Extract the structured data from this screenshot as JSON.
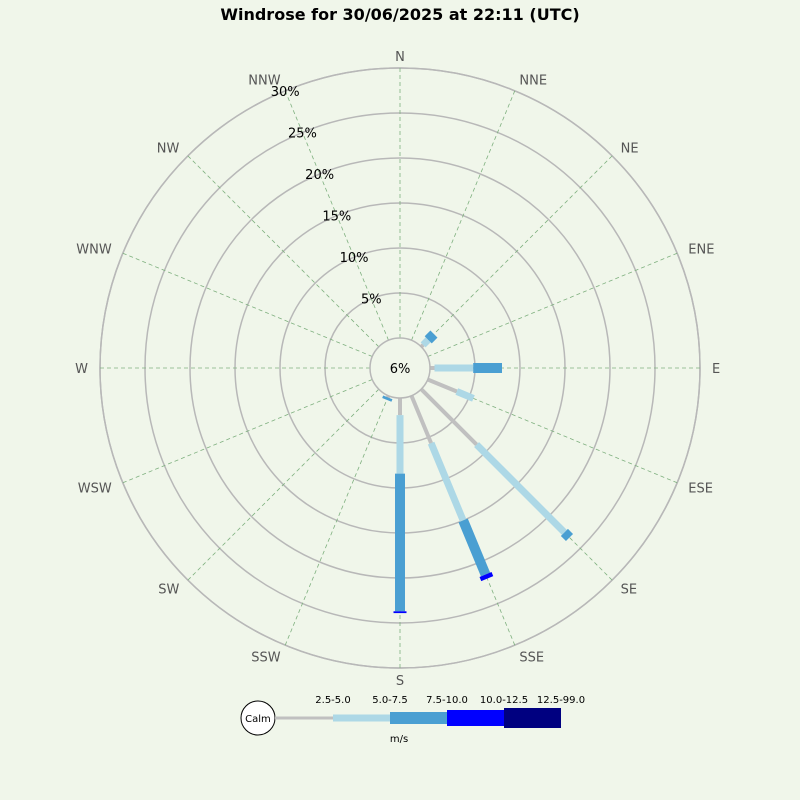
{
  "chart_data": {
    "type": "windrose",
    "title": "Windrose for 30/06/2025 at 22:11 (UTC)",
    "directions": [
      "N",
      "NNE",
      "NE",
      "ENE",
      "E",
      "ESE",
      "SE",
      "SSE",
      "S",
      "SSW",
      "SW",
      "WSW",
      "W",
      "WNW",
      "NW",
      "NNW"
    ],
    "rings": [
      {
        "value": 5,
        "label": "5%"
      },
      {
        "value": 10,
        "label": "10%"
      },
      {
        "value": 15,
        "label": "15%"
      },
      {
        "value": 20,
        "label": "20%"
      },
      {
        "value": 25,
        "label": "25%"
      },
      {
        "value": 30,
        "label": "30%"
      }
    ],
    "rmax": 30,
    "calm_label": "6%",
    "calm_percent": 6,
    "speed_bins": [
      {
        "label": "2.5-5.0",
        "color": "#c0c0c0"
      },
      {
        "label": "5.0-7.5",
        "color": "#add8e6"
      },
      {
        "label": "7.5-10.0",
        "color": "#4a9fd2"
      },
      {
        "label": "10.0-12.5",
        "color": "#0000ff"
      },
      {
        "label": "12.5-99.0",
        "color": "#000080"
      }
    ],
    "legend_calm_label": "Calm",
    "legend_unit": "m/s",
    "series": [
      {
        "direction": "NE",
        "values": [
          0.3,
          0.8,
          0.9,
          0,
          0
        ]
      },
      {
        "direction": "ENE",
        "values": [
          0,
          0,
          0,
          0,
          0
        ]
      },
      {
        "direction": "E",
        "values": [
          0.5,
          4.3,
          3.2,
          0,
          0
        ]
      },
      {
        "direction": "ESE",
        "values": [
          3.5,
          2.0,
          0,
          0,
          0
        ]
      },
      {
        "direction": "SE",
        "values": [
          8.7,
          13.8,
          0.8,
          0,
          0
        ]
      },
      {
        "direction": "SSE",
        "values": [
          5.7,
          9.3,
          6.5,
          0.5,
          0
        ]
      },
      {
        "direction": "S",
        "values": [
          1.9,
          6.5,
          15.3,
          0.2,
          0
        ]
      },
      {
        "direction": "SSW",
        "values": [
          0.2,
          0,
          0.3,
          0,
          0
        ]
      }
    ]
  }
}
